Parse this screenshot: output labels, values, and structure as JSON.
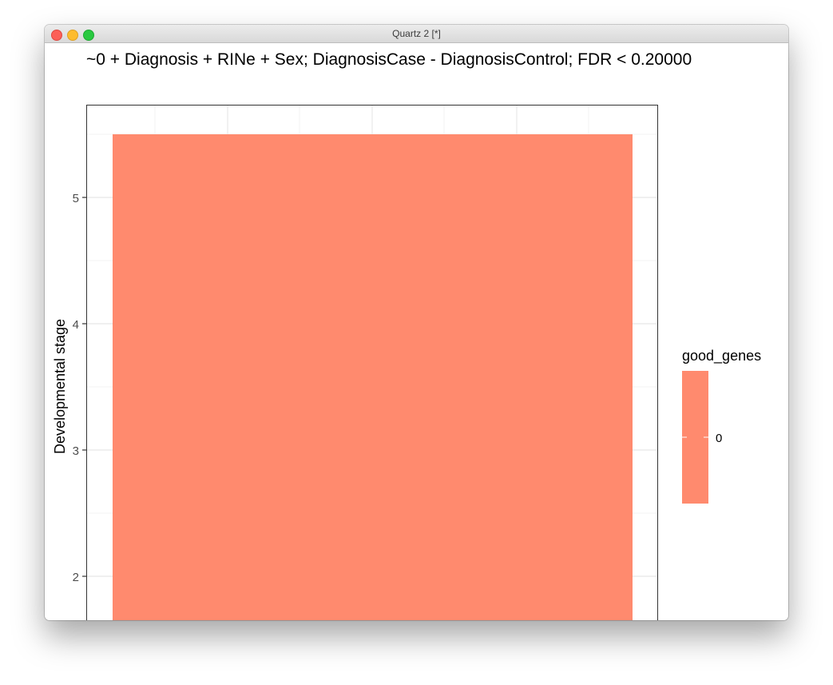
{
  "window": {
    "title": "Quartz 2 [*]"
  },
  "chart_data": {
    "type": "bar",
    "title": "~0 + Diagnosis + RINe + Sex; DiagnosisCase - DiagnosisControl; FDR < 0.20000",
    "ylabel": "Developmental stage",
    "xlabel": "",
    "ylim": [
      1.45,
      5.5
    ],
    "yticks": [
      2,
      3,
      4,
      5
    ],
    "grid": true,
    "bars": [
      {
        "x": 1,
        "ymin": 1.45,
        "ymax": 5.5,
        "fill_value": "0"
      }
    ],
    "legend": {
      "title": "good_genes",
      "entries": [
        "0"
      ],
      "placement": "right"
    },
    "bar_color": "#ff8a6e"
  }
}
